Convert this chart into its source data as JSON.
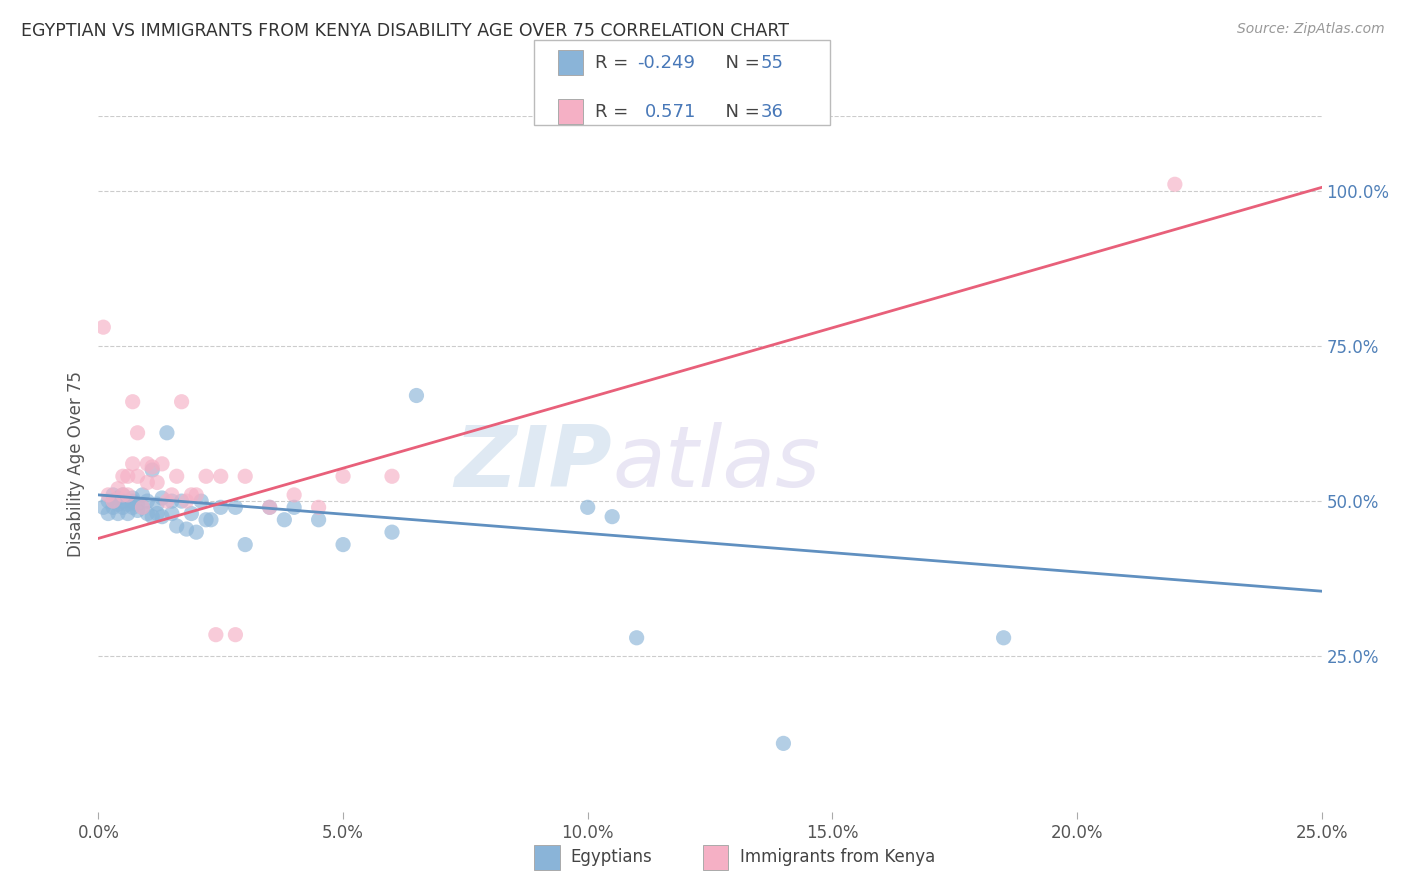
{
  "title": "EGYPTIAN VS IMMIGRANTS FROM KENYA DISABILITY AGE OVER 75 CORRELATION CHART",
  "source": "Source: ZipAtlas.com",
  "ylabel": "Disability Age Over 75",
  "xlim": [
    0.0,
    0.25
  ],
  "ylim": [
    0.0,
    1.12
  ],
  "xtick_values": [
    0.0,
    0.05,
    0.1,
    0.15,
    0.2,
    0.25
  ],
  "xtick_labels": [
    "0.0%",
    "5.0%",
    "10.0%",
    "15.0%",
    "20.0%",
    "25.0%"
  ],
  "ytick_values": [
    0.25,
    0.5,
    0.75,
    1.0
  ],
  "ytick_labels": [
    "25.0%",
    "50.0%",
    "75.0%",
    "100.0%"
  ],
  "legend_r_blue": "-0.249",
  "legend_n_blue": "55",
  "legend_r_pink": "0.571",
  "legend_n_pink": "36",
  "blue_color": "#8ab4d8",
  "pink_color": "#f5b0c5",
  "blue_line_color": "#6090c0",
  "pink_line_color": "#e8607a",
  "watermark_zip": "ZIP",
  "watermark_atlas": "atlas",
  "background_color": "#ffffff",
  "blue_scatter_x": [
    0.001,
    0.002,
    0.002,
    0.003,
    0.003,
    0.003,
    0.004,
    0.004,
    0.004,
    0.005,
    0.005,
    0.005,
    0.006,
    0.006,
    0.007,
    0.007,
    0.007,
    0.008,
    0.008,
    0.009,
    0.009,
    0.01,
    0.01,
    0.011,
    0.011,
    0.012,
    0.012,
    0.013,
    0.013,
    0.014,
    0.015,
    0.015,
    0.016,
    0.017,
    0.018,
    0.019,
    0.02,
    0.021,
    0.022,
    0.023,
    0.025,
    0.028,
    0.03,
    0.035,
    0.038,
    0.04,
    0.045,
    0.05,
    0.06,
    0.065,
    0.1,
    0.11,
    0.14,
    0.185,
    0.105
  ],
  "blue_scatter_y": [
    0.49,
    0.48,
    0.5,
    0.5,
    0.49,
    0.51,
    0.48,
    0.495,
    0.505,
    0.49,
    0.5,
    0.51,
    0.48,
    0.495,
    0.49,
    0.505,
    0.5,
    0.485,
    0.495,
    0.49,
    0.51,
    0.48,
    0.5,
    0.55,
    0.475,
    0.48,
    0.495,
    0.475,
    0.505,
    0.61,
    0.48,
    0.5,
    0.46,
    0.5,
    0.455,
    0.48,
    0.45,
    0.5,
    0.47,
    0.47,
    0.49,
    0.49,
    0.43,
    0.49,
    0.47,
    0.49,
    0.47,
    0.43,
    0.45,
    0.67,
    0.49,
    0.28,
    0.11,
    0.28,
    0.475
  ],
  "pink_scatter_x": [
    0.001,
    0.002,
    0.003,
    0.004,
    0.005,
    0.005,
    0.006,
    0.006,
    0.007,
    0.007,
    0.008,
    0.008,
    0.009,
    0.01,
    0.01,
    0.011,
    0.012,
    0.013,
    0.014,
    0.015,
    0.016,
    0.017,
    0.018,
    0.019,
    0.02,
    0.022,
    0.024,
    0.025,
    0.028,
    0.03,
    0.035,
    0.04,
    0.045,
    0.05,
    0.06,
    0.22
  ],
  "pink_scatter_y": [
    0.78,
    0.51,
    0.5,
    0.52,
    0.51,
    0.54,
    0.51,
    0.54,
    0.56,
    0.66,
    0.54,
    0.61,
    0.49,
    0.53,
    0.56,
    0.555,
    0.53,
    0.56,
    0.5,
    0.51,
    0.54,
    0.66,
    0.5,
    0.51,
    0.51,
    0.54,
    0.285,
    0.54,
    0.285,
    0.54,
    0.49,
    0.51,
    0.49,
    0.54,
    0.54,
    1.01
  ],
  "blue_trendline_x": [
    0.0,
    0.25
  ],
  "blue_trendline_y": [
    0.51,
    0.355
  ],
  "pink_trendline_x": [
    0.0,
    0.25
  ],
  "pink_trendline_y": [
    0.44,
    1.005
  ]
}
